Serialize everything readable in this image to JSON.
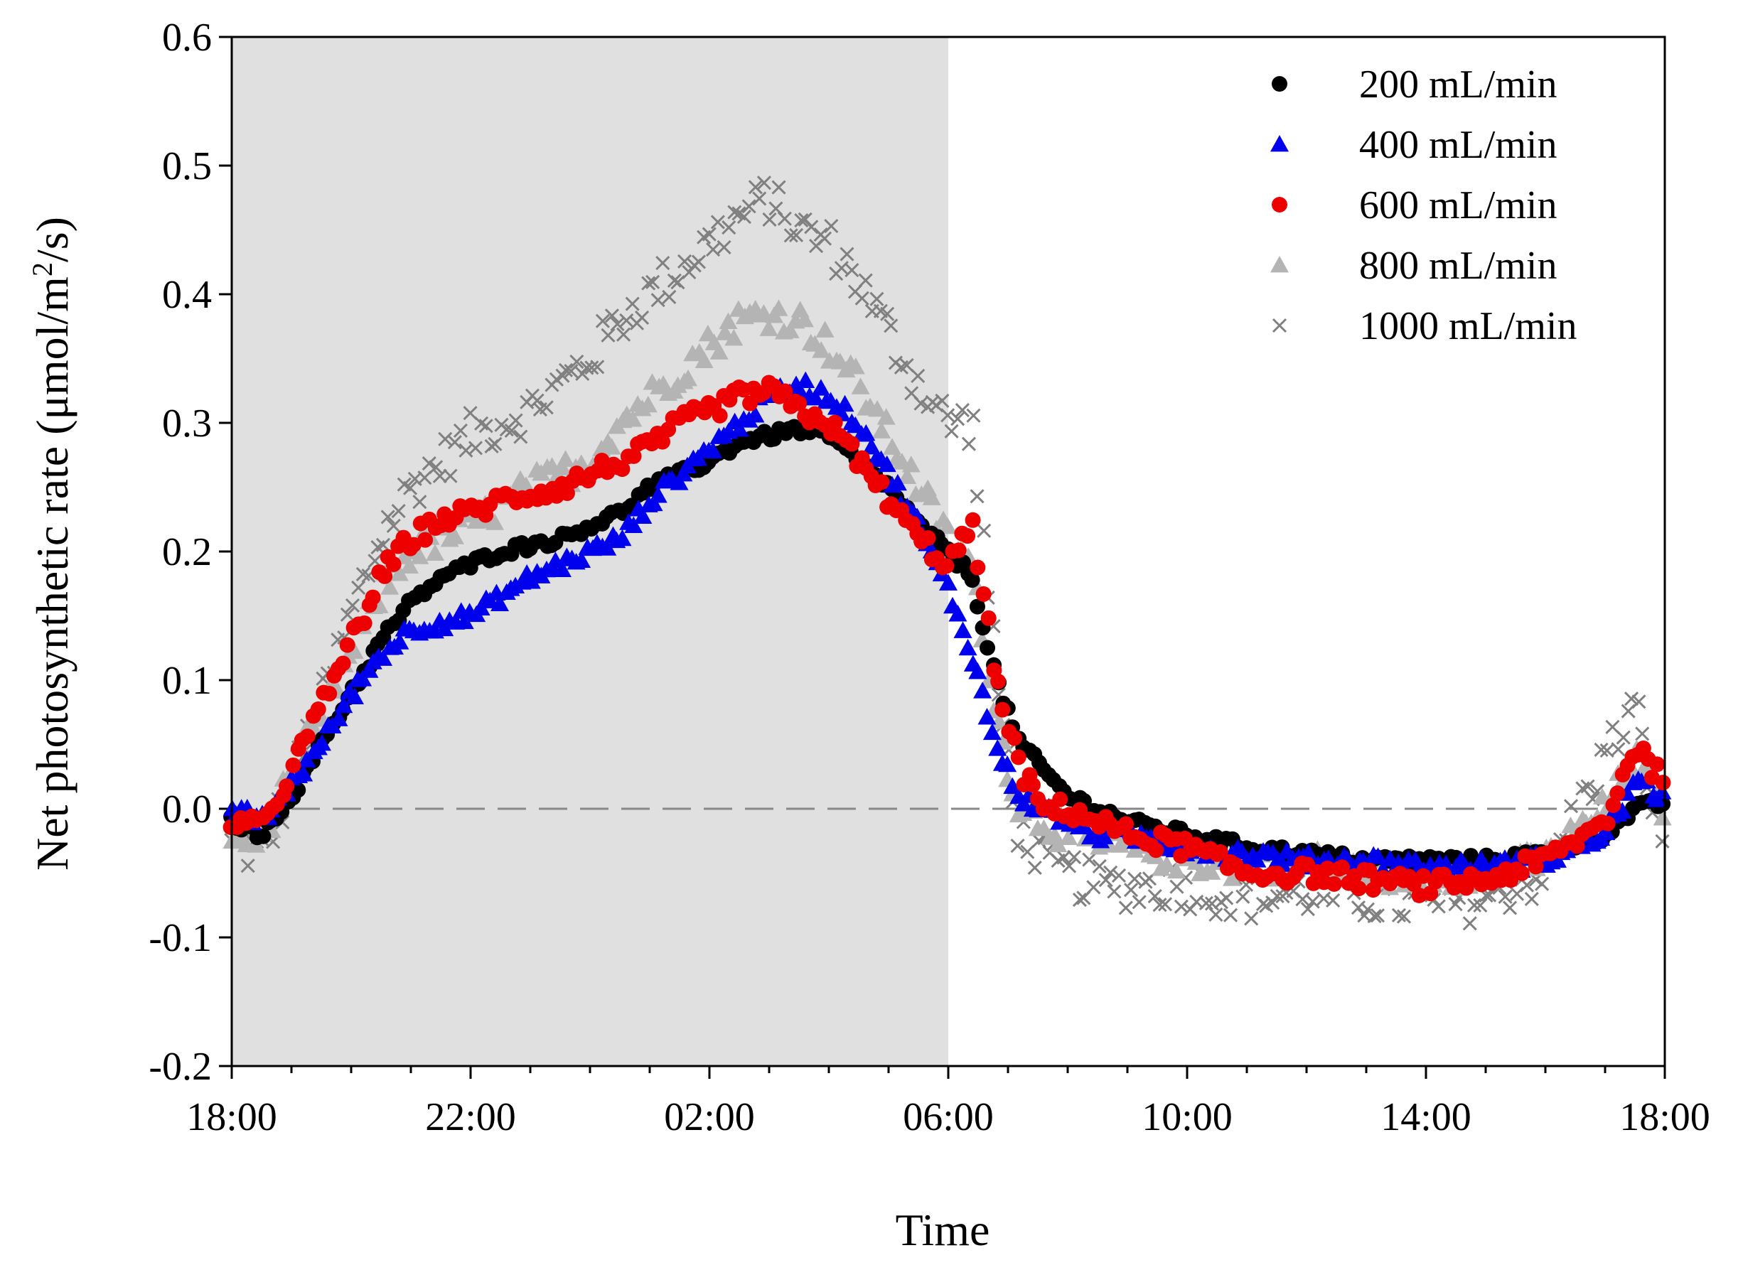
{
  "chart_data": {
    "type": "scatter",
    "title": "",
    "xlabel": "Time",
    "ylabel_main": "Net photosynthetic rate (μmol/m",
    "ylabel_sup": "2",
    "ylabel_end": "/s)",
    "xlim": [
      0,
      24
    ],
    "ylim": [
      -0.2,
      0.6
    ],
    "x_ticks": [
      {
        "value": 0,
        "label": "18:00"
      },
      {
        "value": 4,
        "label": "22:00"
      },
      {
        "value": 8,
        "label": "02:00"
      },
      {
        "value": 12,
        "label": "06:00"
      },
      {
        "value": 16,
        "label": "10:00"
      },
      {
        "value": 20,
        "label": "14:00"
      },
      {
        "value": 24,
        "label": "18:00"
      }
    ],
    "y_ticks": [
      {
        "value": -0.2,
        "label": "-0.2"
      },
      {
        "value": -0.1,
        "label": "-0.1"
      },
      {
        "value": 0.0,
        "label": "0.0"
      },
      {
        "value": 0.1,
        "label": "0.1"
      },
      {
        "value": 0.2,
        "label": "0.2"
      },
      {
        "value": 0.3,
        "label": "0.3"
      },
      {
        "value": 0.4,
        "label": "0.4"
      },
      {
        "value": 0.5,
        "label": "0.5"
      },
      {
        "value": 0.6,
        "label": "0.6"
      }
    ],
    "dark_period": [
      0,
      12
    ],
    "dark_color": "#e0e0e0",
    "reference_line_y": 0.0,
    "legend_position": "top-right",
    "series": [
      {
        "name": "200 mL/min",
        "marker": "circle",
        "color": "#000000",
        "spread": 0.004,
        "x": [
          0,
          0.5,
          1,
          1.5,
          2,
          2.5,
          3,
          3.5,
          4,
          4.5,
          5,
          5.5,
          6,
          6.5,
          7,
          7.5,
          8,
          8.5,
          9,
          9.5,
          10,
          10.5,
          11,
          11.5,
          12,
          12.4,
          12.8,
          13.2,
          13.6,
          14,
          14.5,
          15,
          16,
          17,
          18,
          19,
          20,
          21,
          22,
          23,
          23.5,
          24
        ],
        "y": [
          -0.01,
          -0.02,
          0.01,
          0.05,
          0.09,
          0.13,
          0.16,
          0.18,
          0.19,
          0.2,
          0.205,
          0.21,
          0.22,
          0.23,
          0.25,
          0.26,
          0.27,
          0.285,
          0.29,
          0.295,
          0.29,
          0.27,
          0.25,
          0.22,
          0.2,
          0.18,
          0.1,
          0.05,
          0.03,
          0.01,
          0.0,
          -0.01,
          -0.02,
          -0.03,
          -0.035,
          -0.04,
          -0.04,
          -0.04,
          -0.035,
          -0.02,
          0.0,
          0.005
        ]
      },
      {
        "name": "400 mL/min",
        "marker": "triangle",
        "color": "#0000ee",
        "spread": 0.006,
        "x": [
          0,
          0.5,
          1,
          1.5,
          2,
          2.5,
          3,
          3.5,
          4,
          4.5,
          5,
          5.5,
          6,
          6.5,
          7,
          7.5,
          8,
          8.5,
          9,
          9.5,
          10,
          10.5,
          11,
          11.5,
          12,
          12.4,
          12.8,
          13.2,
          13.6,
          14,
          14.5,
          15,
          16,
          17,
          18,
          19,
          20,
          21,
          22,
          23,
          23.5,
          24
        ],
        "y": [
          0.0,
          -0.01,
          0.02,
          0.05,
          0.09,
          0.12,
          0.14,
          0.145,
          0.15,
          0.165,
          0.18,
          0.19,
          0.2,
          0.21,
          0.24,
          0.26,
          0.28,
          0.3,
          0.32,
          0.33,
          0.32,
          0.3,
          0.26,
          0.22,
          0.17,
          0.12,
          0.05,
          0.01,
          0.0,
          -0.01,
          -0.02,
          -0.02,
          -0.03,
          -0.035,
          -0.04,
          -0.04,
          -0.045,
          -0.045,
          -0.04,
          -0.02,
          0.02,
          0.01
        ]
      },
      {
        "name": "600 mL/min",
        "marker": "circle",
        "color": "#ee0000",
        "spread": 0.008,
        "x": [
          0,
          0.5,
          1,
          1.5,
          2,
          2.5,
          3,
          3.5,
          4,
          4.5,
          5,
          5.5,
          6,
          6.5,
          7,
          7.5,
          8,
          8.5,
          9,
          9.5,
          10,
          10.5,
          11,
          11.5,
          12,
          12.4,
          12.8,
          13.2,
          13.6,
          14,
          14.5,
          15,
          16,
          17,
          18,
          19,
          20,
          21,
          22,
          23,
          23.5,
          24
        ],
        "y": [
          -0.01,
          -0.015,
          0.03,
          0.08,
          0.13,
          0.18,
          0.21,
          0.225,
          0.23,
          0.24,
          0.245,
          0.25,
          0.26,
          0.27,
          0.28,
          0.3,
          0.31,
          0.32,
          0.325,
          0.31,
          0.3,
          0.27,
          0.24,
          0.21,
          0.19,
          0.22,
          0.1,
          0.03,
          0.0,
          0.0,
          -0.01,
          -0.02,
          -0.03,
          -0.05,
          -0.05,
          -0.055,
          -0.06,
          -0.055,
          -0.04,
          -0.01,
          0.05,
          0.02
        ]
      },
      {
        "name": "800 mL/min",
        "marker": "triangle",
        "color": "#b4b4b4",
        "spread": 0.012,
        "x": [
          0,
          0.5,
          1,
          1.5,
          2,
          2.5,
          3,
          3.5,
          4,
          4.5,
          5,
          5.5,
          6,
          6.5,
          7,
          7.5,
          8,
          8.5,
          9,
          9.5,
          10,
          10.5,
          11,
          11.5,
          12,
          12.4,
          12.8,
          13.2,
          13.6,
          14,
          14.5,
          15,
          16,
          17,
          18,
          19,
          20,
          21,
          22,
          23,
          23.5,
          24
        ],
        "y": [
          -0.02,
          -0.025,
          0.03,
          0.07,
          0.12,
          0.17,
          0.2,
          0.21,
          0.22,
          0.235,
          0.25,
          0.26,
          0.27,
          0.3,
          0.32,
          0.34,
          0.36,
          0.38,
          0.385,
          0.38,
          0.36,
          0.33,
          0.29,
          0.25,
          0.21,
          0.19,
          0.07,
          0.0,
          -0.01,
          -0.02,
          -0.03,
          -0.03,
          -0.04,
          -0.045,
          -0.04,
          -0.05,
          -0.05,
          -0.05,
          -0.04,
          0.0,
          0.04,
          0.0
        ]
      },
      {
        "name": "1000 mL/min",
        "marker": "x",
        "color": "#808080",
        "spread": 0.018,
        "x": [
          0,
          0.5,
          1,
          1.5,
          2,
          2.5,
          3,
          3.5,
          4,
          4.5,
          5,
          5.5,
          6,
          6.5,
          7,
          7.5,
          8,
          8.5,
          9,
          9.5,
          10,
          10.5,
          11,
          11.5,
          12,
          12.4,
          12.8,
          13.2,
          13.6,
          14,
          14.5,
          15,
          16,
          17,
          18,
          19,
          20,
          21,
          22,
          23,
          23.5,
          24
        ],
        "y": [
          -0.03,
          -0.035,
          0.02,
          0.08,
          0.15,
          0.21,
          0.25,
          0.27,
          0.29,
          0.3,
          0.31,
          0.33,
          0.35,
          0.38,
          0.4,
          0.42,
          0.44,
          0.46,
          0.475,
          0.45,
          0.44,
          0.41,
          0.37,
          0.33,
          0.3,
          0.3,
          0.1,
          -0.02,
          -0.04,
          -0.05,
          -0.06,
          -0.06,
          -0.06,
          -0.07,
          -0.065,
          -0.07,
          -0.075,
          -0.07,
          -0.05,
          0.04,
          0.08,
          -0.04
        ]
      }
    ]
  }
}
